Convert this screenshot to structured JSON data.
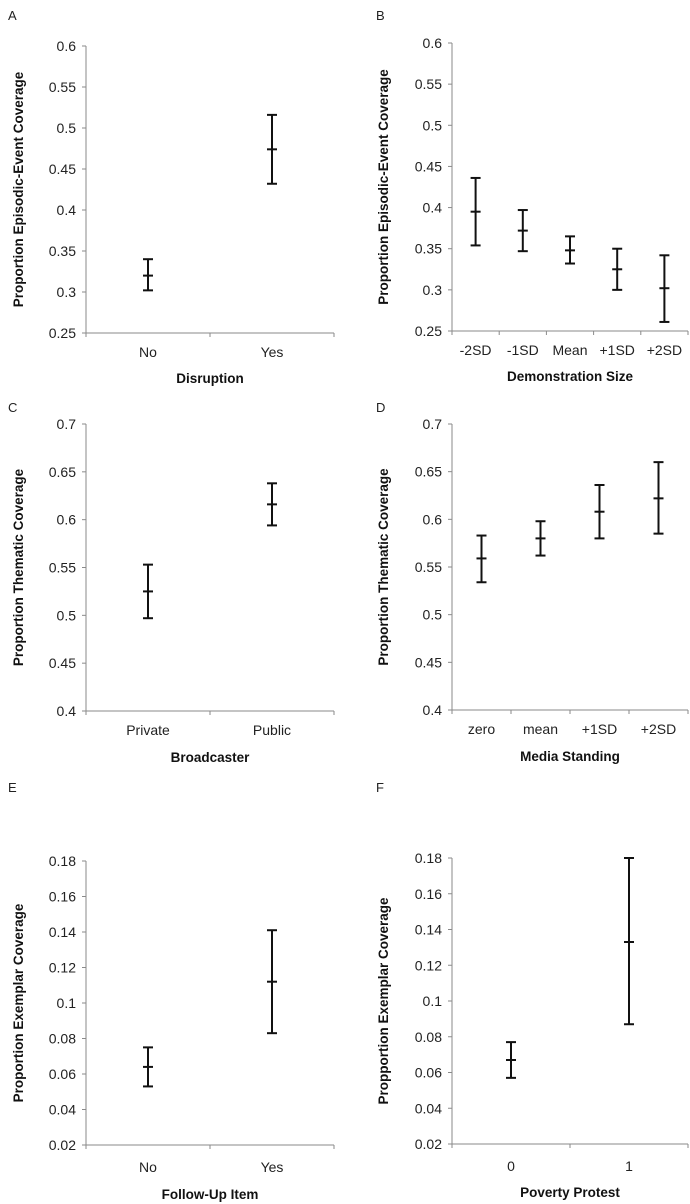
{
  "chart_data": [
    {
      "type": "scatter",
      "panel": "A",
      "categories": [
        "No",
        "Yes"
      ],
      "series": [
        {
          "values": [
            0.32,
            0.474
          ],
          "lower": [
            0.302,
            0.432
          ],
          "upper": [
            0.34,
            0.516
          ]
        }
      ],
      "xlabel": "Disruption",
      "ylabel": "Proportion Episodic-Event Coverage",
      "ylim": [
        0.25,
        0.6
      ],
      "yticks": [
        "0.25",
        "0.3",
        "0.35",
        "0.4",
        "0.45",
        "0.5",
        "0.55",
        "0.6"
      ],
      "grid": false
    },
    {
      "type": "scatter",
      "panel": "B",
      "categories": [
        "-2SD",
        "-1SD",
        "Mean",
        "+1SD",
        "+2SD"
      ],
      "series": [
        {
          "values": [
            0.395,
            0.372,
            0.348,
            0.325,
            0.302
          ],
          "lower": [
            0.354,
            0.347,
            0.332,
            0.3,
            0.261
          ],
          "upper": [
            0.436,
            0.397,
            0.365,
            0.35,
            0.342
          ]
        }
      ],
      "xlabel": "Demonstration Size",
      "ylabel": "Proportion Episodic-Event Coverage",
      "ylim": [
        0.25,
        0.6
      ],
      "yticks": [
        "0.25",
        "0.3",
        "0.35",
        "0.4",
        "0.45",
        "0.5",
        "0.55",
        "0.6"
      ],
      "grid": false
    },
    {
      "type": "scatter",
      "panel": "C",
      "categories": [
        "Private",
        "Public"
      ],
      "series": [
        {
          "values": [
            0.525,
            0.616
          ],
          "lower": [
            0.497,
            0.594
          ],
          "upper": [
            0.553,
            0.638
          ]
        }
      ],
      "xlabel": "Broadcaster",
      "ylabel": "Proportion Thematic Coverage",
      "ylim": [
        0.4,
        0.7
      ],
      "yticks": [
        "0.4",
        "0.45",
        "0.5",
        "0.55",
        "0.6",
        "0.65",
        "0.7"
      ],
      "grid": false
    },
    {
      "type": "scatter",
      "panel": "D",
      "categories": [
        "zero",
        "mean",
        "+1SD",
        "+2SD"
      ],
      "series": [
        {
          "values": [
            0.559,
            0.58,
            0.608,
            0.622
          ],
          "lower": [
            0.534,
            0.562,
            0.58,
            0.585
          ],
          "upper": [
            0.583,
            0.598,
            0.636,
            0.66
          ]
        }
      ],
      "xlabel": "Media Standing",
      "ylabel": "Proportion Thematic Coverage",
      "ylim": [
        0.4,
        0.7
      ],
      "yticks": [
        "0.4",
        "0.45",
        "0.5",
        "0.55",
        "0.6",
        "0.65",
        "0.7"
      ],
      "grid": false
    },
    {
      "type": "scatter",
      "panel": "E",
      "categories": [
        "No",
        "Yes"
      ],
      "series": [
        {
          "values": [
            0.064,
            0.112
          ],
          "lower": [
            0.053,
            0.083
          ],
          "upper": [
            0.075,
            0.141
          ]
        }
      ],
      "xlabel": "Follow-Up Item",
      "ylabel": "Proportion Exemplar Coverage",
      "ylim": [
        0.02,
        0.18
      ],
      "yticks": [
        "0.02",
        "0.04",
        "0.06",
        "0.08",
        "0.1",
        "0.12",
        "0.14",
        "0.16",
        "0.18"
      ],
      "grid": false
    },
    {
      "type": "scatter",
      "panel": "F",
      "categories": [
        "0",
        "1"
      ],
      "series": [
        {
          "values": [
            0.067,
            0.133
          ],
          "lower": [
            0.057,
            0.087
          ],
          "upper": [
            0.077,
            0.18
          ]
        }
      ],
      "xlabel": "Poverty Protest",
      "ylabel": "Propportion Exemplar Coverage",
      "ylim": [
        0.02,
        0.18
      ],
      "yticks": [
        "0.02",
        "0.04",
        "0.06",
        "0.08",
        "0.1",
        "0.12",
        "0.14",
        "0.16",
        "0.18"
      ],
      "grid": false
    }
  ]
}
